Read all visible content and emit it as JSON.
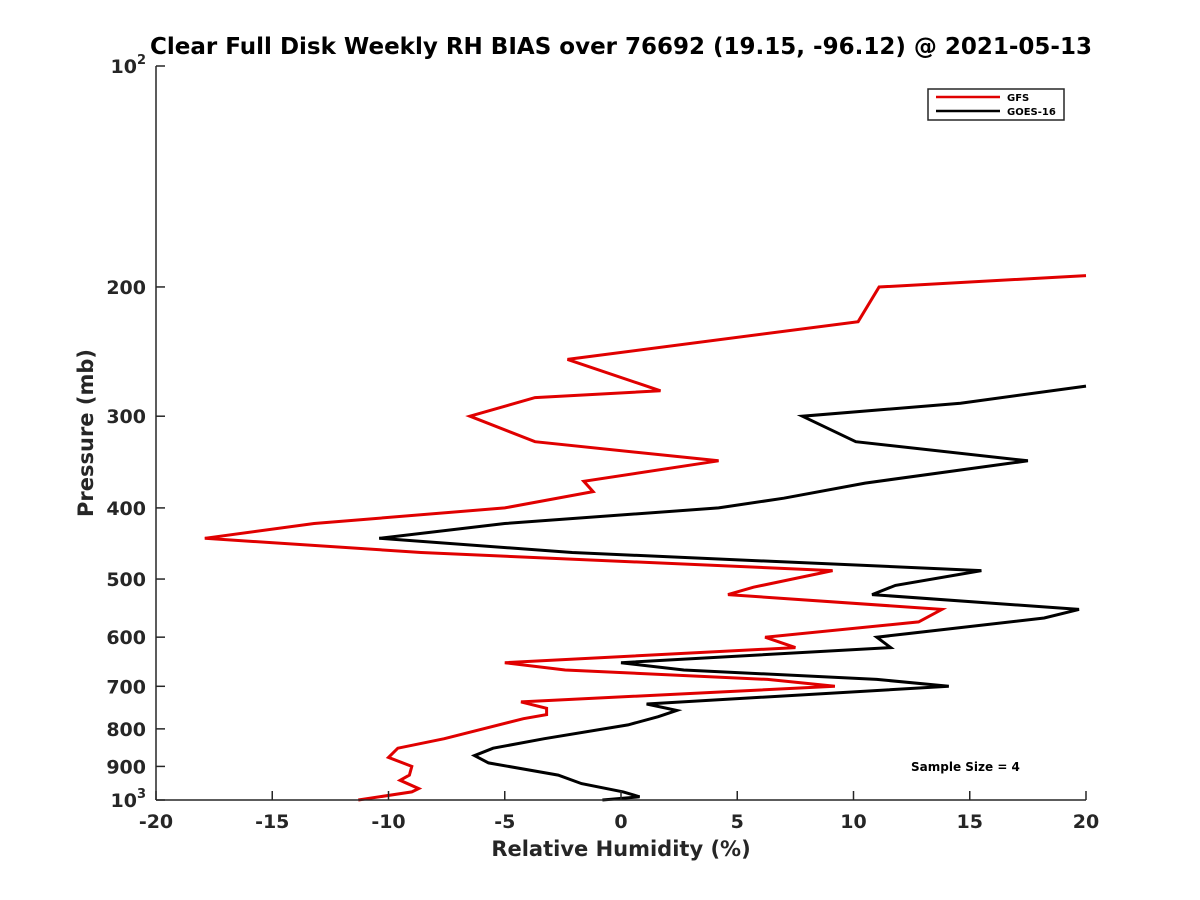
{
  "chart_data": {
    "type": "line",
    "title": "Clear Full Disk Weekly RH BIAS over 76692 (19.15, -96.12) @ 2021-05-13",
    "xlabel": "Relative Humidity (%)",
    "ylabel": "Pressure (mb)",
    "xlim": [
      -20,
      20
    ],
    "ylim": [
      100,
      1000
    ],
    "yscale": "log",
    "x_ticks": [
      -20,
      -15,
      -10,
      -5,
      0,
      5,
      10,
      15,
      20
    ],
    "y_ticks": [
      {
        "value": 100,
        "base": "10",
        "exp": "2"
      },
      {
        "value": 200,
        "label": "200"
      },
      {
        "value": 300,
        "label": "300"
      },
      {
        "value": 400,
        "label": "400"
      },
      {
        "value": 500,
        "label": "500"
      },
      {
        "value": 600,
        "label": "600"
      },
      {
        "value": 700,
        "label": "700"
      },
      {
        "value": 800,
        "label": "800"
      },
      {
        "value": 900,
        "label": "900"
      },
      {
        "value": 1000,
        "base": "10",
        "exp": "3"
      }
    ],
    "legend_position": "top-right",
    "series": [
      {
        "name": "GFS",
        "color": "#e00000",
        "points": [
          [
            20.0,
            193
          ],
          [
            11.1,
            200
          ],
          [
            10.2,
            223
          ],
          [
            -2.3,
            251
          ],
          [
            1.7,
            277
          ],
          [
            -3.7,
            283
          ],
          [
            -6.5,
            300
          ],
          [
            -3.7,
            325
          ],
          [
            4.2,
            345
          ],
          [
            -1.6,
            368
          ],
          [
            -1.2,
            380
          ],
          [
            -5.0,
            400
          ],
          [
            -13.2,
            420
          ],
          [
            -17.9,
            440
          ],
          [
            -8.6,
            460
          ],
          [
            9.1,
            487
          ],
          [
            5.7,
            513
          ],
          [
            4.6,
            525
          ],
          [
            13.8,
            550
          ],
          [
            12.8,
            572
          ],
          [
            6.2,
            600
          ],
          [
            7.5,
            620
          ],
          [
            -5.0,
            650
          ],
          [
            -2.4,
            665
          ],
          [
            6.3,
            685
          ],
          [
            9.2,
            700
          ],
          [
            -4.3,
            735
          ],
          [
            -3.2,
            750
          ],
          [
            -3.2,
            765
          ],
          [
            -4.2,
            775
          ],
          [
            -7.6,
            825
          ],
          [
            -9.6,
            850
          ],
          [
            -10.0,
            875
          ],
          [
            -9.0,
            900
          ],
          [
            -9.1,
            925
          ],
          [
            -9.5,
            940
          ],
          [
            -8.7,
            965
          ],
          [
            -9.0,
            975
          ],
          [
            -11.3,
            1000
          ]
        ]
      },
      {
        "name": "GOES-16",
        "color": "#000000",
        "points": [
          [
            20.0,
            273
          ],
          [
            14.6,
            288
          ],
          [
            7.8,
            300
          ],
          [
            10.1,
            325
          ],
          [
            17.5,
            345
          ],
          [
            10.5,
            370
          ],
          [
            7.0,
            388
          ],
          [
            4.2,
            400
          ],
          [
            -5.0,
            420
          ],
          [
            -10.4,
            440
          ],
          [
            -2.1,
            460
          ],
          [
            15.5,
            487
          ],
          [
            11.8,
            510
          ],
          [
            10.8,
            525
          ],
          [
            19.7,
            550
          ],
          [
            18.2,
            565
          ],
          [
            11.0,
            600
          ],
          [
            11.6,
            620
          ],
          [
            0.0,
            650
          ],
          [
            2.7,
            665
          ],
          [
            11.0,
            685
          ],
          [
            14.1,
            700
          ],
          [
            1.1,
            740
          ],
          [
            2.4,
            755
          ],
          [
            1.6,
            770
          ],
          [
            0.3,
            790
          ],
          [
            -3.3,
            825
          ],
          [
            -5.5,
            850
          ],
          [
            -6.3,
            870
          ],
          [
            -5.7,
            890
          ],
          [
            -2.7,
            925
          ],
          [
            -1.7,
            950
          ],
          [
            0.1,
            975
          ],
          [
            0.8,
            990
          ],
          [
            -0.8,
            1000
          ]
        ]
      }
    ],
    "annotation": "Sample Size = 4"
  }
}
